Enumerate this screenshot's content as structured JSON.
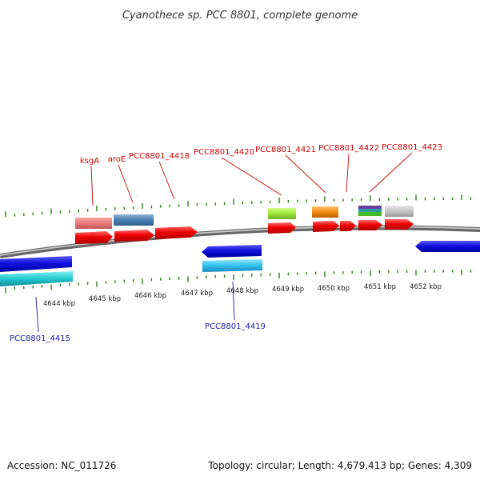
{
  "title": "Cyanothece sp. PCC 8801, complete genome",
  "footer": {
    "accession": "Accession: NC_011726",
    "topology": "Topology: circular; Length: 4,679,413 bp; Genes: 4,309"
  },
  "scale_labels": [
    "4644 kbp",
    "4645 kbp",
    "4646 kbp",
    "4647 kbp",
    "4648 kbp",
    "4649 kbp",
    "4650 kbp",
    "4651 kbp",
    "4652 kbp"
  ],
  "gene_labels_forward": [
    "ksgA",
    "aroE",
    "PCC8801_4418",
    "PCC8801_4420",
    "PCC8801_4421",
    "PCC8801_4422",
    "PCC8801_4423"
  ],
  "gene_labels_reverse": [
    "PCC8801_4415",
    "PCC8801_4419"
  ],
  "colors": {
    "backbone": "#8a8a8a",
    "forward_gene": "#ee0000",
    "reverse_gene": "#1111dd",
    "tick": "#2f7d1a",
    "label_forward": "#cc0000",
    "label_reverse": "#1a1aa8"
  }
}
